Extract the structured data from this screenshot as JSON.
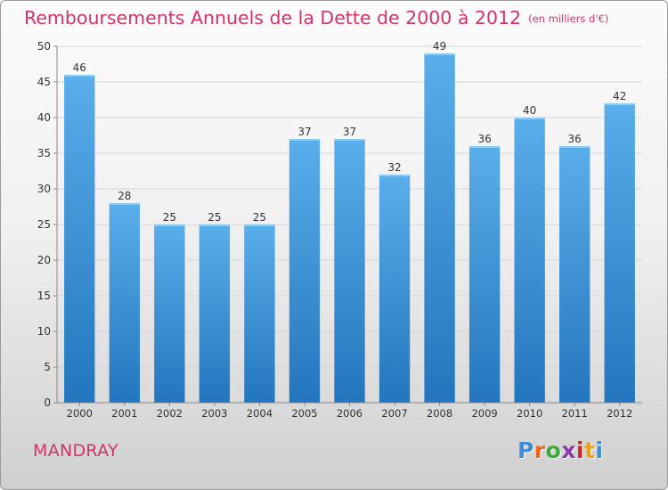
{
  "title": "Remboursements Annuels de la Dette de 2000 à 2012",
  "unit": "(en milliers d'€)",
  "city": "MANDRAY",
  "logo": {
    "text": "Proxiti",
    "letters": [
      "P",
      "r",
      "o",
      "x",
      "i",
      "t",
      "i"
    ],
    "colors": [
      "#3b8fd6",
      "#e86a1a",
      "#3fa83b",
      "#8a3aa8",
      "#d4232a",
      "#e8a21a",
      "#3b8fd6"
    ]
  },
  "colors": {
    "title": "#d03368",
    "bar_top": "#5aaeea",
    "bar_bottom": "#2376bd",
    "grid": "#d6d6d6",
    "axis": "#888888",
    "label": "#333333"
  },
  "chart_data": {
    "type": "bar",
    "title": "Remboursements Annuels de la Dette de 2000 à 2012",
    "categories": [
      "2000",
      "2001",
      "2002",
      "2003",
      "2004",
      "2005",
      "2006",
      "2007",
      "2008",
      "2009",
      "2010",
      "2011",
      "2012"
    ],
    "values": [
      46,
      28,
      25,
      25,
      25,
      37,
      37,
      32,
      49,
      36,
      40,
      36,
      42
    ],
    "ylim": [
      0,
      50
    ],
    "yticks": [
      0,
      5,
      10,
      15,
      20,
      25,
      30,
      35,
      40,
      45,
      50
    ],
    "grid": true,
    "data_labels": true,
    "xlabel": "",
    "ylabel": ""
  }
}
